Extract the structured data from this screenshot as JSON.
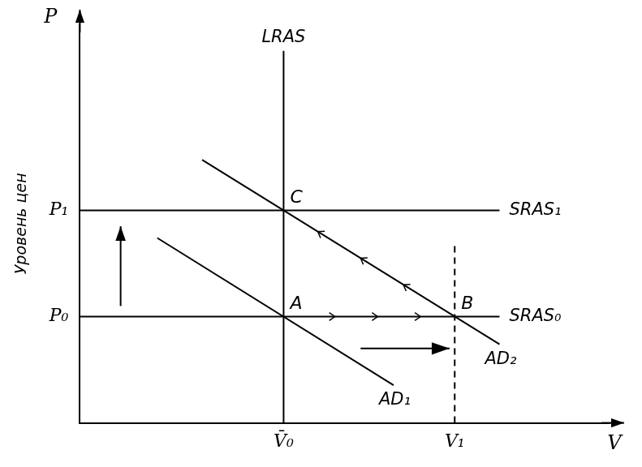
{
  "chart_data": {
    "type": "line",
    "x_label": "V",
    "y_label": "P",
    "y_title": "Уровень цен",
    "xlim": [
      0,
      13
    ],
    "ylim": [
      0,
      7.5
    ],
    "xticks": [
      {
        "value": 5,
        "label": "V̄₀"
      },
      {
        "value": 9.2,
        "label": "V₁"
      }
    ],
    "yticks": [
      {
        "value": 2,
        "label": "P₀"
      },
      {
        "value": 4,
        "label": "P₁"
      }
    ],
    "grid": false,
    "series": [
      {
        "name": "LRAS",
        "color": "#000000",
        "line_style": "solid",
        "x": [
          5,
          5
        ],
        "values": [
          0,
          7
        ]
      },
      {
        "name": "SRAS₁",
        "color": "#000000",
        "line_style": "solid",
        "x": [
          0,
          10.3
        ],
        "values": [
          4,
          4
        ]
      },
      {
        "name": "SRAS₀",
        "color": "#000000",
        "line_style": "solid",
        "x": [
          0,
          10.3
        ],
        "values": [
          2,
          2
        ]
      },
      {
        "name": "AD₁",
        "color": "#000000",
        "line_style": "solid",
        "x": [
          1.9,
          7.7
        ],
        "values": [
          3.48,
          0.71
        ]
      },
      {
        "name": "AD₂",
        "color": "#000000",
        "line_style": "solid",
        "x": [
          3,
          10.3
        ],
        "values": [
          4.95,
          1.48
        ]
      },
      {
        "color": "#000000",
        "line_style": "dashed",
        "x": [
          9.2,
          9.2
        ],
        "values": [
          0,
          3.4
        ]
      }
    ],
    "annotations": [
      {
        "text": "A",
        "x": 5,
        "y": 2
      },
      {
        "text": "B",
        "x": 9.2,
        "y": 2
      },
      {
        "text": "C",
        "x": 5,
        "y": 4
      }
    ]
  }
}
